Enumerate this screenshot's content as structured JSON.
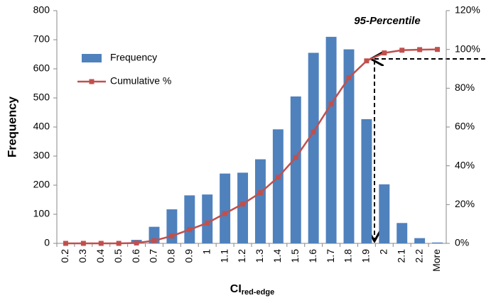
{
  "chart_data": {
    "type": "bar_line",
    "x_label": "CI",
    "x_label_subscript": "red-edge",
    "y_label": "Frequency",
    "annotation": "95-Percentile",
    "categories": [
      "0.2",
      "0.3",
      "0.4",
      "0.5",
      "0.6",
      "0.7",
      "0.8",
      "0.9",
      "1",
      "1.1",
      "1.2",
      "1.3",
      "1.4",
      "1.5",
      "1.6",
      "1.7",
      "1.8",
      "1.9",
      "2",
      "2.1",
      "2.2",
      "More"
    ],
    "series": [
      {
        "name": "Frequency",
        "color": "#4f81bd",
        "kind": "bar",
        "values": [
          0,
          0,
          0,
          0,
          12,
          57,
          117,
          165,
          168,
          240,
          243,
          289,
          392,
          505,
          655,
          710,
          667,
          427,
          203,
          70,
          18,
          3
        ]
      },
      {
        "name": "Cumulative %",
        "color": "#c0504d",
        "kind": "line",
        "axis": "y2",
        "values": [
          0,
          0,
          0,
          0,
          0.2,
          1.4,
          3.8,
          7.1,
          10.5,
          15.4,
          20.3,
          26.1,
          34.1,
          44.3,
          57.5,
          71.9,
          85.4,
          94.1,
          98.2,
          99.6,
          99.9,
          100
        ]
      }
    ],
    "ylim": [
      0,
      800
    ],
    "yticks": [
      0,
      100,
      200,
      300,
      400,
      500,
      600,
      700,
      800
    ],
    "y2lim": [
      0,
      120
    ],
    "y2ticks": [
      {
        "value": 0,
        "label": "0%"
      },
      {
        "value": 20,
        "label": "20%"
      },
      {
        "value": 40,
        "label": "40%"
      },
      {
        "value": 60,
        "label": "60%"
      },
      {
        "value": 80,
        "label": "80%"
      },
      {
        "value": 100,
        "label": "100%"
      },
      {
        "value": 120,
        "label": "120%"
      }
    ],
    "legend": "upper left"
  }
}
